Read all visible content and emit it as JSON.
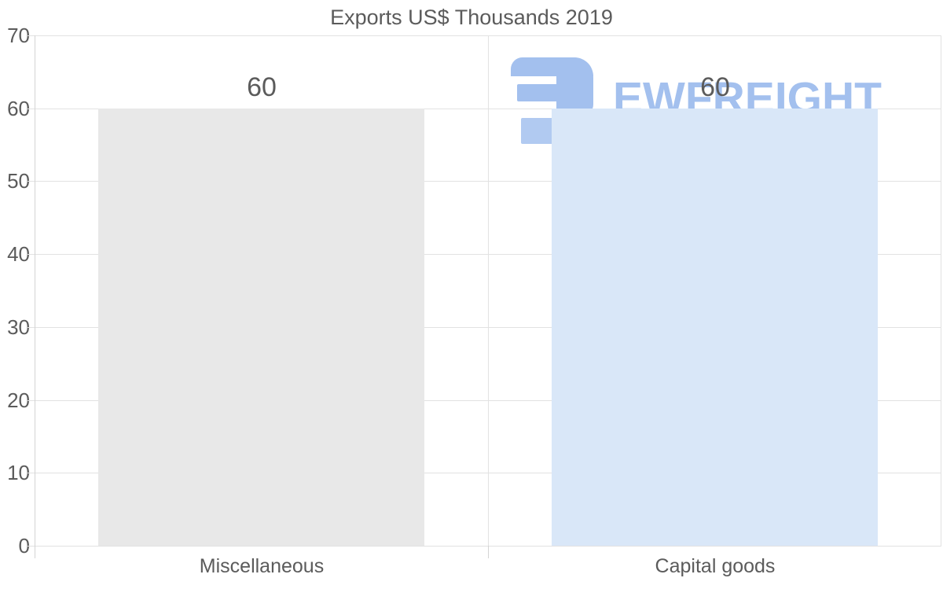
{
  "chart_data": {
    "type": "bar",
    "title": "Exports US$ Thousands 2019",
    "categories": [
      "Miscellaneous",
      "Capital goods"
    ],
    "values": [
      60,
      60
    ],
    "data_labels": [
      "60",
      "60"
    ],
    "bar_colors": [
      "#e8e8e8",
      "#d9e7f8"
    ],
    "xlabel": "",
    "ylabel": "",
    "ylim": [
      0,
      70
    ],
    "yticks": [
      0,
      10,
      20,
      30,
      40,
      50,
      60,
      70
    ],
    "grid": true,
    "legend": "none"
  },
  "watermark": {
    "text": "EWFREIGHT",
    "text_color": "#a3c0ee",
    "logo_primary_color": "#a3c0ee",
    "logo_secondary_color": "#b1caf1"
  },
  "colors": {
    "background": "#ffffff",
    "text": "#5b5b5b",
    "gridline": "#e2e2e2",
    "axis_line": "#d4d4d4"
  }
}
